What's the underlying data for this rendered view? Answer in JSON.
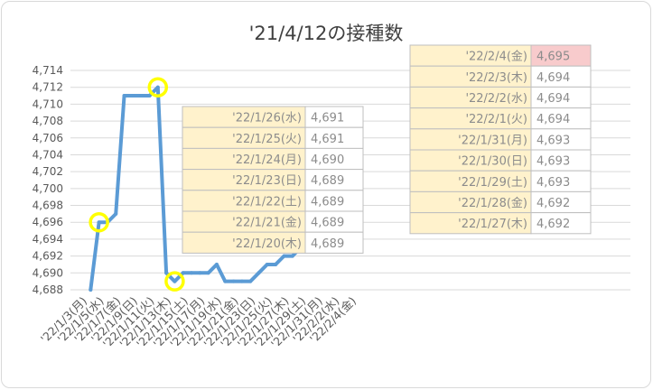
{
  "chart_data": {
    "type": "line",
    "title": "'21/4/12の接種数",
    "ylim": [
      4688,
      4714
    ],
    "y_ticks": [
      "4,688",
      "4,690",
      "4,692",
      "4,694",
      "4,696",
      "4,698",
      "4,700",
      "4,702",
      "4,704",
      "4,706",
      "4,708",
      "4,710",
      "4,712",
      "4,714"
    ],
    "x_tick_labels": [
      "'22/1/3(月)",
      "'22/1/5(水)",
      "'22/1/7(金)",
      "'22/1/9(日)",
      "'22/1/11(火)",
      "'22/1/13(木)",
      "'22/1/15(土)",
      "'22/1/17(月)",
      "'22/1/19(水)",
      "'22/1/21(金)",
      "'22/1/23(日)",
      "'22/1/25(火)",
      "'22/1/27(木)",
      "'22/1/29(土)",
      "'22/1/31(月)",
      "'22/2/2(水)",
      "'22/2/4(金)"
    ],
    "x": [
      "2022-01-04",
      "2022-01-05",
      "2022-01-06",
      "2022-01-07",
      "2022-01-08",
      "2022-01-09",
      "2022-01-10",
      "2022-01-11",
      "2022-01-12",
      "2022-01-13",
      "2022-01-14",
      "2022-01-15",
      "2022-01-16",
      "2022-01-17",
      "2022-01-18",
      "2022-01-19",
      "2022-01-20",
      "2022-01-21",
      "2022-01-22",
      "2022-01-23",
      "2022-01-24",
      "2022-01-25",
      "2022-01-26",
      "2022-01-27",
      "2022-01-28",
      "2022-01-29",
      "2022-01-30",
      "2022-01-31",
      "2022-02-01",
      "2022-02-02",
      "2022-02-03",
      "2022-02-04"
    ],
    "values": [
      4688,
      4696,
      4696,
      4697,
      4711,
      4711,
      4711,
      4711,
      4712,
      4690,
      4689,
      4690,
      4690,
      4690,
      4690,
      4691,
      4689,
      4689,
      4689,
      4689,
      4690,
      4691,
      4691,
      4692,
      4692,
      4693,
      4693,
      4693,
      4694,
      4694,
      4694,
      4695
    ],
    "line_color": "#5b9bd5",
    "highlight_color": "#ffff00",
    "highlighted_points": [
      "2022-01-05",
      "2022-01-12",
      "2022-01-14",
      "2022-02-04"
    ],
    "grid": "horizontal"
  },
  "table_left": {
    "rows": [
      {
        "date": "'22/1/26(水)",
        "value": "4,691"
      },
      {
        "date": "'22/1/25(火)",
        "value": "4,691"
      },
      {
        "date": "'22/1/24(月)",
        "value": "4,690"
      },
      {
        "date": "'22/1/23(日)",
        "value": "4,689"
      },
      {
        "date": "'22/1/22(土)",
        "value": "4,689"
      },
      {
        "date": "'22/1/21(金)",
        "value": "4,689"
      },
      {
        "date": "'22/1/20(木)",
        "value": "4,689"
      }
    ]
  },
  "table_right": {
    "rows": [
      {
        "date": "'22/2/4(金)",
        "value": "4,695",
        "highlight": true
      },
      {
        "date": "'22/2/3(木)",
        "value": "4,694"
      },
      {
        "date": "'22/2/2(水)",
        "value": "4,694"
      },
      {
        "date": "'22/2/1(火)",
        "value": "4,694"
      },
      {
        "date": "'22/1/31(月)",
        "value": "4,693"
      },
      {
        "date": "'22/1/30(日)",
        "value": "4,693"
      },
      {
        "date": "'22/1/29(土)",
        "value": "4,693"
      },
      {
        "date": "'22/1/28(金)",
        "value": "4,692"
      },
      {
        "date": "'22/1/27(木)",
        "value": "4,692"
      }
    ]
  },
  "colors": {
    "table_date_bg": "#fff2cc",
    "table_value_bg": "#ffffff",
    "table_highlight_bg": "#f8cbcc",
    "table_border": "#bfbfbf"
  }
}
